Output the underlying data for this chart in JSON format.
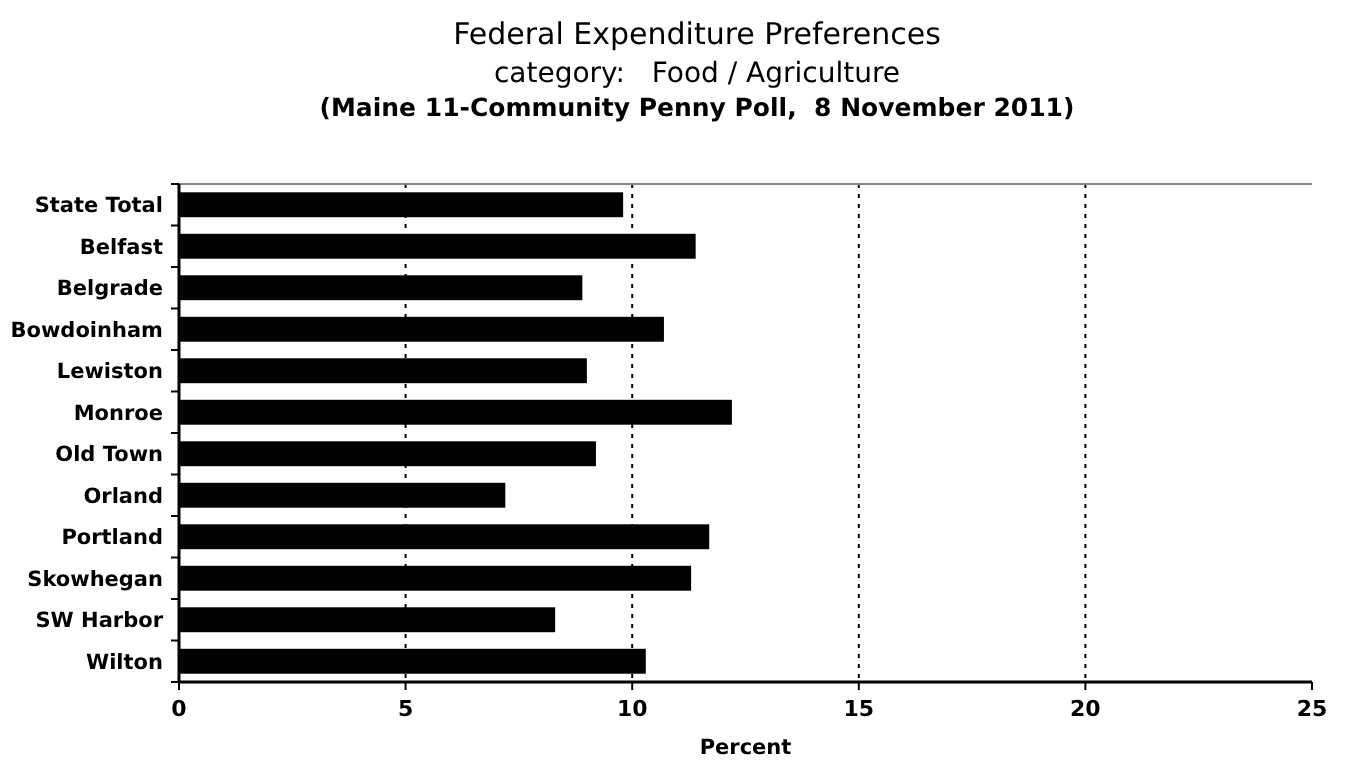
{
  "chart_data": {
    "type": "bar",
    "orientation": "horizontal",
    "title": "Federal Expenditure Preferences",
    "subtitle": "category:   Food / Agriculture\n(Maine 11-Community Penny Poll,  8 November 2011)",
    "xlabel": "Percent",
    "categories": [
      "State Total",
      "Belfast",
      "Belgrade",
      "Bowdoinham",
      "Lewiston",
      "Monroe",
      "Old Town",
      "Orland",
      "Portland",
      "Skowhegan",
      "SW Harbor",
      "Wilton"
    ],
    "values": [
      9.8,
      11.4,
      8.9,
      10.7,
      9.0,
      12.2,
      9.2,
      7.2,
      11.7,
      11.3,
      8.3,
      10.3
    ],
    "color": "#000000",
    "xlim": [
      0,
      25
    ],
    "xticks": [
      0,
      5,
      10,
      15,
      20,
      25
    ],
    "grid": "x"
  }
}
